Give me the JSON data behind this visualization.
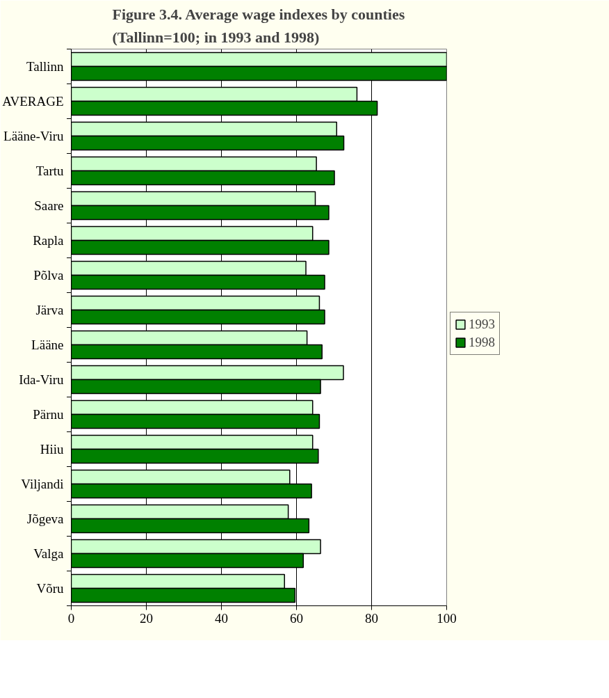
{
  "chart_data": {
    "type": "bar",
    "orientation": "horizontal",
    "title": "Figure 3.4. Average wage indexes by counties\n(Tallinn=100; in 1993 and 1998)",
    "categories": [
      "Tallinn",
      "AVERAGE",
      "Lääne-Viru",
      "Tartu",
      "Saare",
      "Rapla",
      "Põlva",
      "Järva",
      "Lääne",
      "Ida-Viru",
      "Pärnu",
      "Hiiu",
      "Viljandi",
      "Jõgeva",
      "Valga",
      "Võru"
    ],
    "series": [
      {
        "name": "1993",
        "color": "#ccffcc",
        "values": [
          100,
          76.1,
          70.7,
          65.3,
          65.0,
          64.3,
          62.5,
          66.1,
          62.8,
          72.5,
          64.3,
          64.3,
          58.2,
          57.8,
          66.4,
          56.8
        ]
      },
      {
        "name": "1998",
        "color": "#008000",
        "values": [
          100,
          81.5,
          72.6,
          70.1,
          68.6,
          68.6,
          67.5,
          67.5,
          66.8,
          66.4,
          66.1,
          65.8,
          64.0,
          63.3,
          61.8,
          59.6
        ]
      }
    ],
    "xlim": [
      0,
      100
    ],
    "xticks": [
      0,
      20,
      40,
      60,
      80,
      100
    ],
    "grid": "x",
    "legend": "right"
  }
}
